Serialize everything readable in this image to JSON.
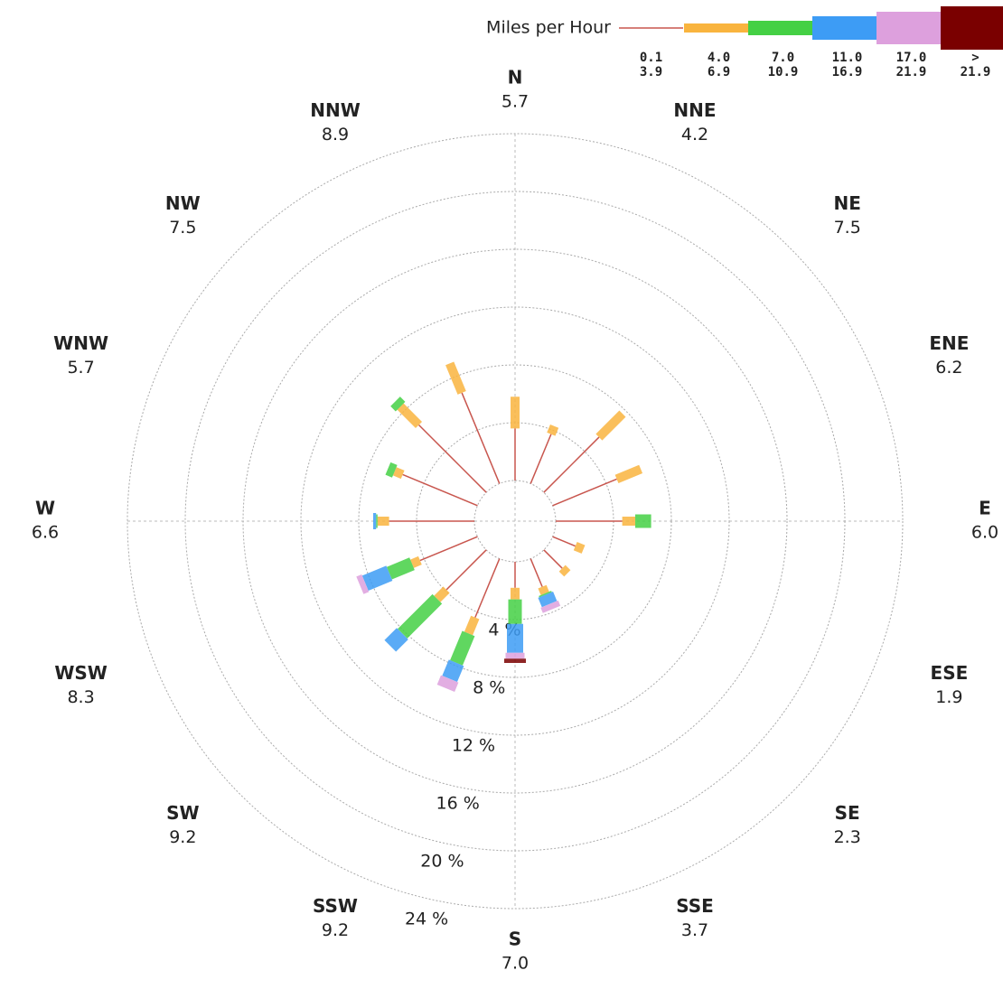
{
  "chart_data": {
    "type": "windrose",
    "legend_title": "Miles per Hour",
    "categories": [
      "N",
      "NNE",
      "NE",
      "ENE",
      "E",
      "ESE",
      "SE",
      "SSE",
      "S",
      "SSW",
      "SW",
      "WSW",
      "W",
      "WNW",
      "NW",
      "NNW"
    ],
    "speed_labels": [
      "5.7",
      "4.2",
      "7.5",
      "6.2",
      "6.0",
      "1.9",
      "2.3",
      "3.7",
      "7.0",
      "9.2",
      "9.2",
      "8.3",
      "6.6",
      "5.7",
      "7.5",
      "8.9"
    ],
    "series": [
      {
        "name": [
          "0.1",
          "3.9"
        ],
        "color": "#c8564e",
        "values": [
          3.6,
          3.7,
          5.4,
          4.8,
          4.6,
          1.7,
          1.8,
          2.1,
          1.8,
          4.4,
          3.9,
          4.3,
          5.9,
          5.6,
          6.6,
          6.8
        ]
      },
      {
        "name": [
          "4.0",
          "6.9"
        ],
        "color": "#f9b43e",
        "values": [
          2.2,
          0.6,
          2.3,
          1.8,
          0.9,
          0.6,
          0.5,
          0.5,
          0.8,
          1.2,
          0.9,
          0.6,
          0.8,
          0.6,
          1.8,
          2.2
        ]
      },
      {
        "name": [
          "7.0",
          "10.9"
        ],
        "color": "#44d044",
        "values": [
          0,
          0,
          0,
          0,
          1.1,
          0,
          0,
          0.1,
          1.7,
          2.2,
          3.4,
          1.7,
          0.1,
          0.5,
          0.5,
          0
        ]
      },
      {
        "name": [
          "11.0",
          "16.9"
        ],
        "color": "#3d9cf5",
        "values": [
          0,
          0,
          0,
          0,
          0,
          0,
          0,
          0.7,
          2.0,
          1.2,
          1.2,
          1.8,
          0.2,
          0,
          0,
          0
        ]
      },
      {
        "name": [
          "17.0",
          "21.9"
        ],
        "color": "#dda0dd",
        "values": [
          0,
          0,
          0,
          0,
          0,
          0,
          0,
          0.4,
          0.4,
          0.7,
          0,
          0.4,
          0,
          0,
          0,
          0
        ]
      },
      {
        "name": [
          ">",
          "21.9"
        ],
        "color": "#7a0000",
        "values": [
          0,
          0,
          0,
          0,
          0,
          0,
          0,
          0,
          0.3,
          0,
          0,
          0,
          0,
          0,
          0,
          0
        ]
      }
    ],
    "rlim": [
      0,
      24
    ],
    "rticks": [
      {
        "value": 4,
        "label": "4 %"
      },
      {
        "value": 8,
        "label": "8 %"
      },
      {
        "value": 12,
        "label": "12 %"
      },
      {
        "value": 16,
        "label": "16 %"
      },
      {
        "value": 20,
        "label": "20 %"
      },
      {
        "value": 24,
        "label": "24 %"
      }
    ],
    "grid": true
  }
}
